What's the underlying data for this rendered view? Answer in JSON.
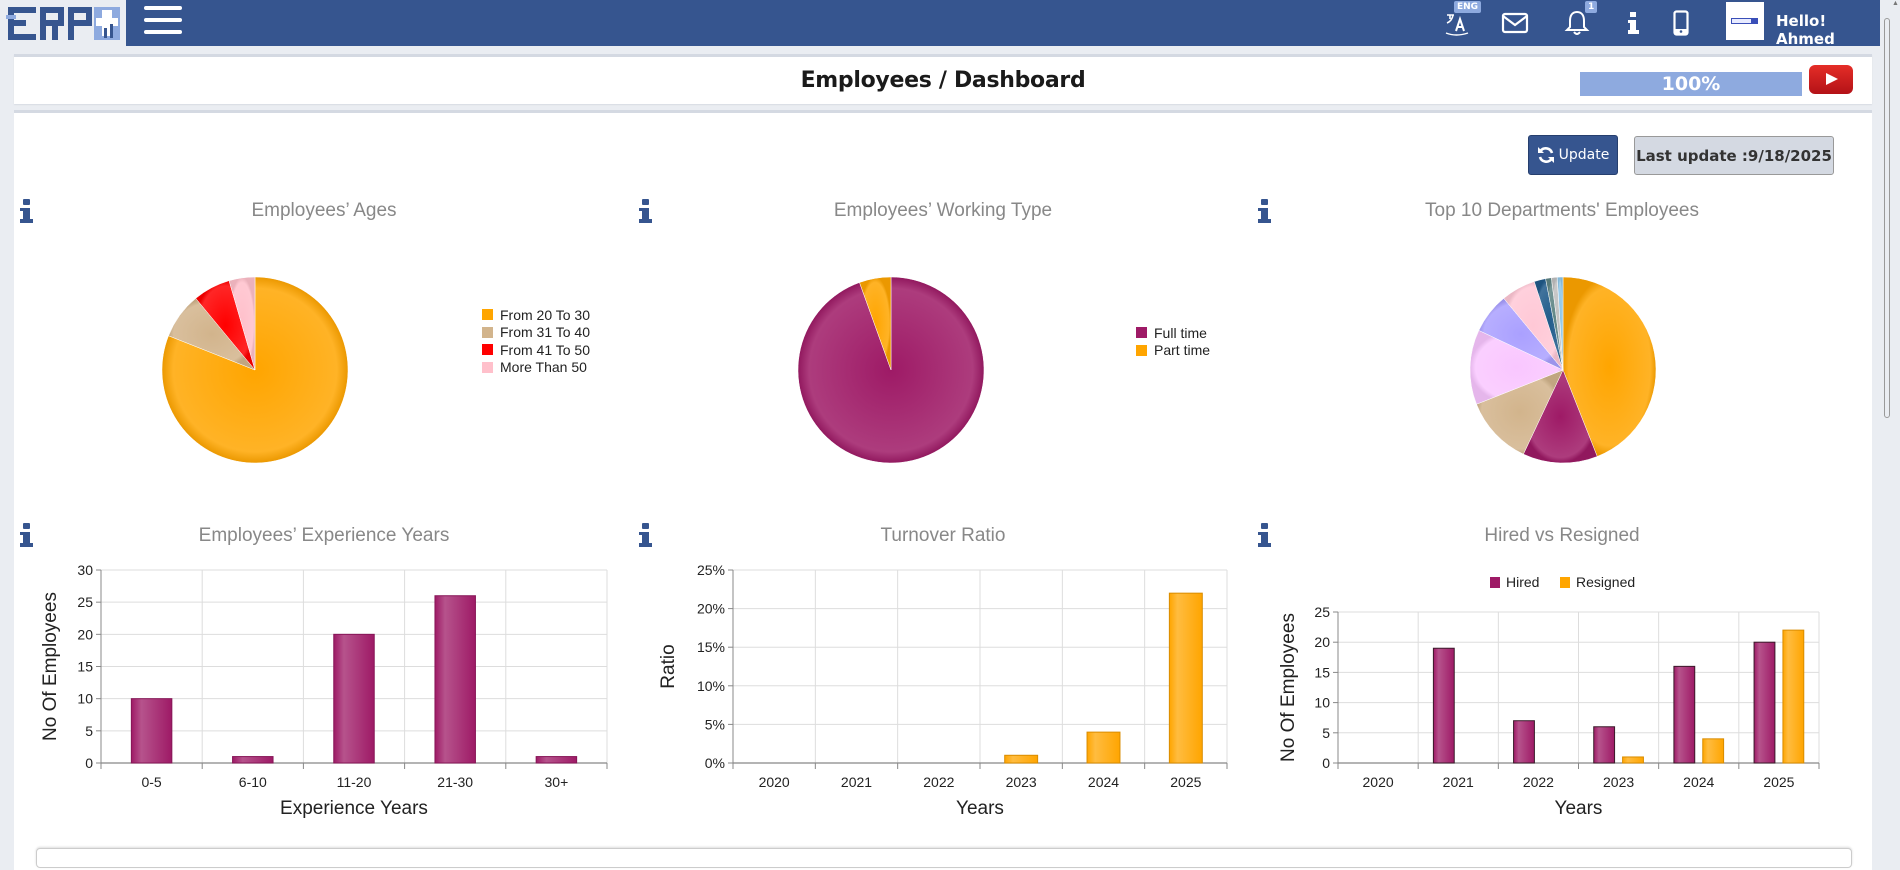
{
  "header": {
    "logo_text": "ERP",
    "language_badge": "ENG",
    "notification_count": "1",
    "greeting": "Hello! Ahmed",
    "icons": [
      "translate-icon",
      "mail-icon",
      "bell-icon",
      "info-icon",
      "mobile-icon"
    ]
  },
  "title_bar": {
    "title": "Employees / Dashboard",
    "progress_label": "100%",
    "progress_value": 100
  },
  "toolbar": {
    "update_label": "Update",
    "last_update_label": "Last update :9/18/2025"
  },
  "colors": {
    "brand": "#36558f",
    "purple": "#9e1a66",
    "orange": "#ffa500",
    "progress": "#8eaadf"
  },
  "chart_data": [
    {
      "id": "ages",
      "type": "pie",
      "title": "Employees’ Ages",
      "legend_position": "right",
      "slices": [
        {
          "label": "From 20 To 30",
          "value": 81,
          "color": "#ffa500"
        },
        {
          "label": "From 31 To 40",
          "value": 8,
          "color": "#d2b48c"
        },
        {
          "label": "From 41 To 50",
          "value": 6.5,
          "color": "#ff0000"
        },
        {
          "label": "More Than 50",
          "value": 4.5,
          "color": "#ffc0cb"
        }
      ]
    },
    {
      "id": "working_type",
      "type": "pie",
      "title": "Employees’ Working Type",
      "legend_position": "right",
      "slices": [
        {
          "label": "Full time",
          "value": 94.5,
          "color": "#9e1a66"
        },
        {
          "label": "Part time",
          "value": 5.5,
          "color": "#ffa500"
        }
      ]
    },
    {
      "id": "departments",
      "type": "pie",
      "title": "Top 10 Departments' Employees",
      "legend_position": "none",
      "slices": [
        {
          "label": "",
          "value": 44,
          "color": "#ffa500"
        },
        {
          "label": "",
          "value": 13,
          "color": "#9e1a66"
        },
        {
          "label": "",
          "value": 12,
          "color": "#d2b48c"
        },
        {
          "label": "",
          "value": 13,
          "color": "#f9c6ff"
        },
        {
          "label": "",
          "value": 7,
          "color": "#aaa0ff"
        },
        {
          "label": "",
          "value": 6,
          "color": "#ffc8d6"
        },
        {
          "label": "",
          "value": 2,
          "color": "#1f5a8a"
        },
        {
          "label": "",
          "value": 1,
          "color": "#5f8585"
        },
        {
          "label": "",
          "value": 1,
          "color": "#c0c0c0"
        },
        {
          "label": "",
          "value": 1,
          "color": "#8ec6e8"
        }
      ]
    },
    {
      "id": "experience",
      "type": "bar",
      "title": "Employees’ Experience Years",
      "xlabel": "Experience Years",
      "ylabel": "No Of Employees",
      "categories": [
        "0-5",
        "6-10",
        "11-20",
        "21-30",
        "30+"
      ],
      "series": [
        {
          "name": "Employees",
          "values": [
            10,
            1,
            20,
            26,
            1
          ],
          "color": "#9e1a66"
        }
      ],
      "ylim": [
        0,
        30
      ],
      "yticks": [
        0,
        5,
        10,
        15,
        20,
        25,
        30
      ],
      "ytick_labels": [
        "0",
        "5",
        "10",
        "15",
        "20",
        "25",
        "30"
      ],
      "grid": true,
      "legend_position": "none"
    },
    {
      "id": "turnover",
      "type": "bar",
      "title": "Turnover Ratio",
      "xlabel": "Years",
      "ylabel": "Ratio",
      "categories": [
        "2020",
        "2021",
        "2022",
        "2023",
        "2024",
        "2025"
      ],
      "series": [
        {
          "name": "Ratio",
          "values": [
            0,
            0,
            0,
            1,
            4,
            22
          ],
          "color": "#ffa500"
        }
      ],
      "ylim": [
        0,
        25
      ],
      "yticks": [
        0,
        5,
        10,
        15,
        20,
        25
      ],
      "ytick_labels": [
        "0%",
        "5%",
        "10%",
        "15%",
        "20%",
        "25%"
      ],
      "grid": true,
      "legend_position": "none"
    },
    {
      "id": "hired_resigned",
      "type": "bar",
      "title": "Hired vs Resigned",
      "xlabel": "Years",
      "ylabel": "No Of Employees",
      "categories": [
        "2020",
        "2021",
        "2022",
        "2023",
        "2024",
        "2025"
      ],
      "series": [
        {
          "name": "Hired",
          "values": [
            0,
            19,
            7,
            6,
            16,
            20
          ],
          "color": "#9e1a66"
        },
        {
          "name": "Resigned",
          "values": [
            0,
            0,
            0,
            1,
            4,
            22
          ],
          "color": "#ffa500"
        }
      ],
      "ylim": [
        0,
        25
      ],
      "yticks": [
        0,
        5,
        10,
        15,
        20,
        25
      ],
      "ytick_labels": [
        "0",
        "5",
        "10",
        "15",
        "20",
        "25"
      ],
      "grid": true,
      "legend_position": "top"
    }
  ]
}
